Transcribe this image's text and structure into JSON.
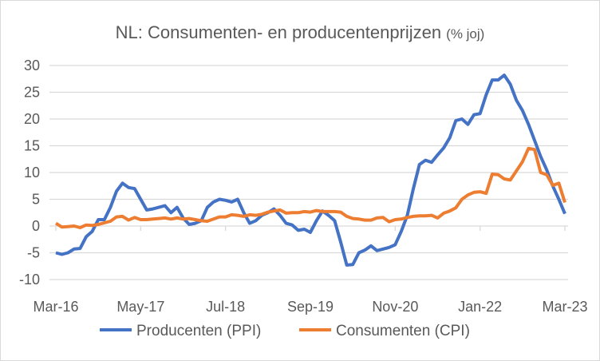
{
  "chart_data": {
    "type": "line",
    "title": "NL: Consumenten- en producentenprijzen",
    "subtitle": "(% joj)",
    "xlabel": "",
    "ylabel": "",
    "ylim": [
      -10,
      30
    ],
    "yticks": [
      -10,
      -5,
      0,
      5,
      10,
      15,
      20,
      25,
      30
    ],
    "ytick_labels": [
      "-10",
      "-5",
      "0",
      "5",
      "10",
      "15",
      "20",
      "25",
      "30"
    ],
    "x_start": "Mar-16",
    "x_end": "Mar-23",
    "x_frequency": "monthly",
    "xtick_labels": [
      "Mar-16",
      "May-17",
      "Jul-18",
      "Sep-19",
      "Nov-20",
      "Jan-22",
      "Mar-23"
    ],
    "xtick_every_months": 14,
    "grid": true,
    "legend_position": "bottom",
    "series": [
      {
        "name": "Producenten (PPI)",
        "color": "#4472C4",
        "values": [
          -5,
          -5.3,
          -5,
          -4.3,
          -4.2,
          -2,
          -1,
          1.2,
          1.2,
          3.5,
          6.5,
          8,
          7.2,
          7,
          5,
          3,
          3.2,
          3.5,
          3.8,
          2.5,
          3.5,
          1.5,
          0.3,
          0.5,
          1,
          3.5,
          4.5,
          5,
          4.8,
          4.5,
          5,
          2.5,
          0.5,
          1,
          2,
          2.5,
          3.2,
          2,
          0.5,
          0.2,
          -0.8,
          -0.6,
          -1.2,
          1,
          2.8,
          2,
          1,
          -3,
          -7.3,
          -7.2,
          -5,
          -4.5,
          -3.7,
          -4.6,
          -4.3,
          -4,
          -3.5,
          -1,
          2,
          7,
          11.5,
          12.3,
          11.9,
          13.3,
          14.6,
          16.5,
          19.7,
          20,
          19,
          20.8,
          21,
          24.5,
          27.3,
          27.3,
          28.2,
          26.5,
          23.5,
          21.6,
          19,
          16,
          13,
          10.5,
          7.5,
          5,
          2.3
        ]
      },
      {
        "name": "Consumenten (CPI)",
        "color": "#ED7D31",
        "values": [
          0.5,
          -0.2,
          -0.1,
          0,
          -0.3,
          0.2,
          0.1,
          0.3,
          0.6,
          0.9,
          1.7,
          1.8,
          1.1,
          1.6,
          1.2,
          1.2,
          1.3,
          1.4,
          1.5,
          1.3,
          1.5,
          1.3,
          1.4,
          1.2,
          1.0,
          0.9,
          1.3,
          1.7,
          1.7,
          2.1,
          2.0,
          1.8,
          2.1,
          2.0,
          2.2,
          2.6,
          2.8,
          3.0,
          2.4,
          2.5,
          2.5,
          2.7,
          2.6,
          2.9,
          2.7,
          2.7,
          2.7,
          2.6,
          1.8,
          1.4,
          1.3,
          1.1,
          1.1,
          1.5,
          1.6,
          0.8,
          1.2,
          1.3,
          1.6,
          1.8,
          1.9,
          1.9,
          2.0,
          1.5,
          2.4,
          2.8,
          3.4,
          5.0,
          5.8,
          6.3,
          6.4,
          6.1,
          9.7,
          9.6,
          8.8,
          8.6,
          10.3,
          12.0,
          14.5,
          14.3,
          10.0,
          9.6,
          7.6,
          8.0,
          4.4
        ]
      }
    ]
  }
}
